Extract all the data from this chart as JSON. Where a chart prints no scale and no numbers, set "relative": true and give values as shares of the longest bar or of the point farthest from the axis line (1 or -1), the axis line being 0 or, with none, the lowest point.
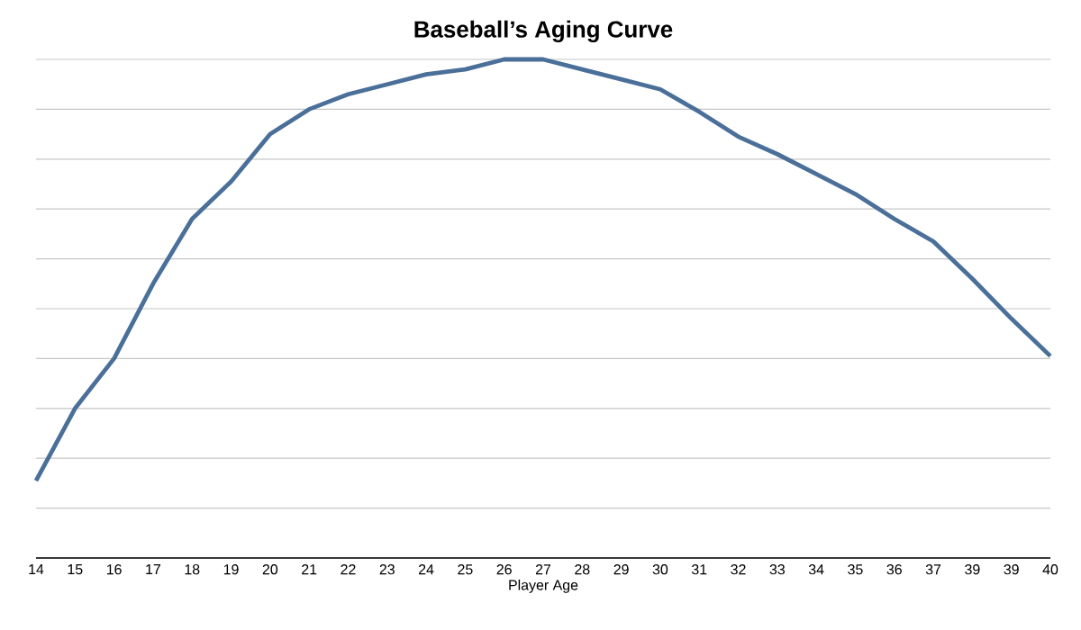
{
  "chart_data": {
    "type": "line",
    "title": "Baseball’s Aging Curve",
    "xlabel": "Player Age",
    "categories": [
      "14",
      "15",
      "16",
      "17",
      "18",
      "19",
      "20",
      "21",
      "22",
      "23",
      "24",
      "25",
      "26",
      "27",
      "28",
      "29",
      "30",
      "31",
      "32",
      "33",
      "34",
      "35",
      "36",
      "37",
      "39",
      "39",
      "40"
    ],
    "relative": true,
    "grid": "y",
    "line_style": "solid",
    "color": "#4a6f99",
    "values": [
      0.155,
      0.3,
      0.4,
      0.55,
      0.68,
      0.755,
      0.85,
      0.9,
      0.93,
      0.95,
      0.97,
      0.98,
      1.0,
      1.0,
      0.98,
      0.96,
      0.94,
      0.895,
      0.845,
      0.81,
      0.77,
      0.73,
      0.68,
      0.635,
      0.56,
      0.48,
      0.405
    ]
  }
}
